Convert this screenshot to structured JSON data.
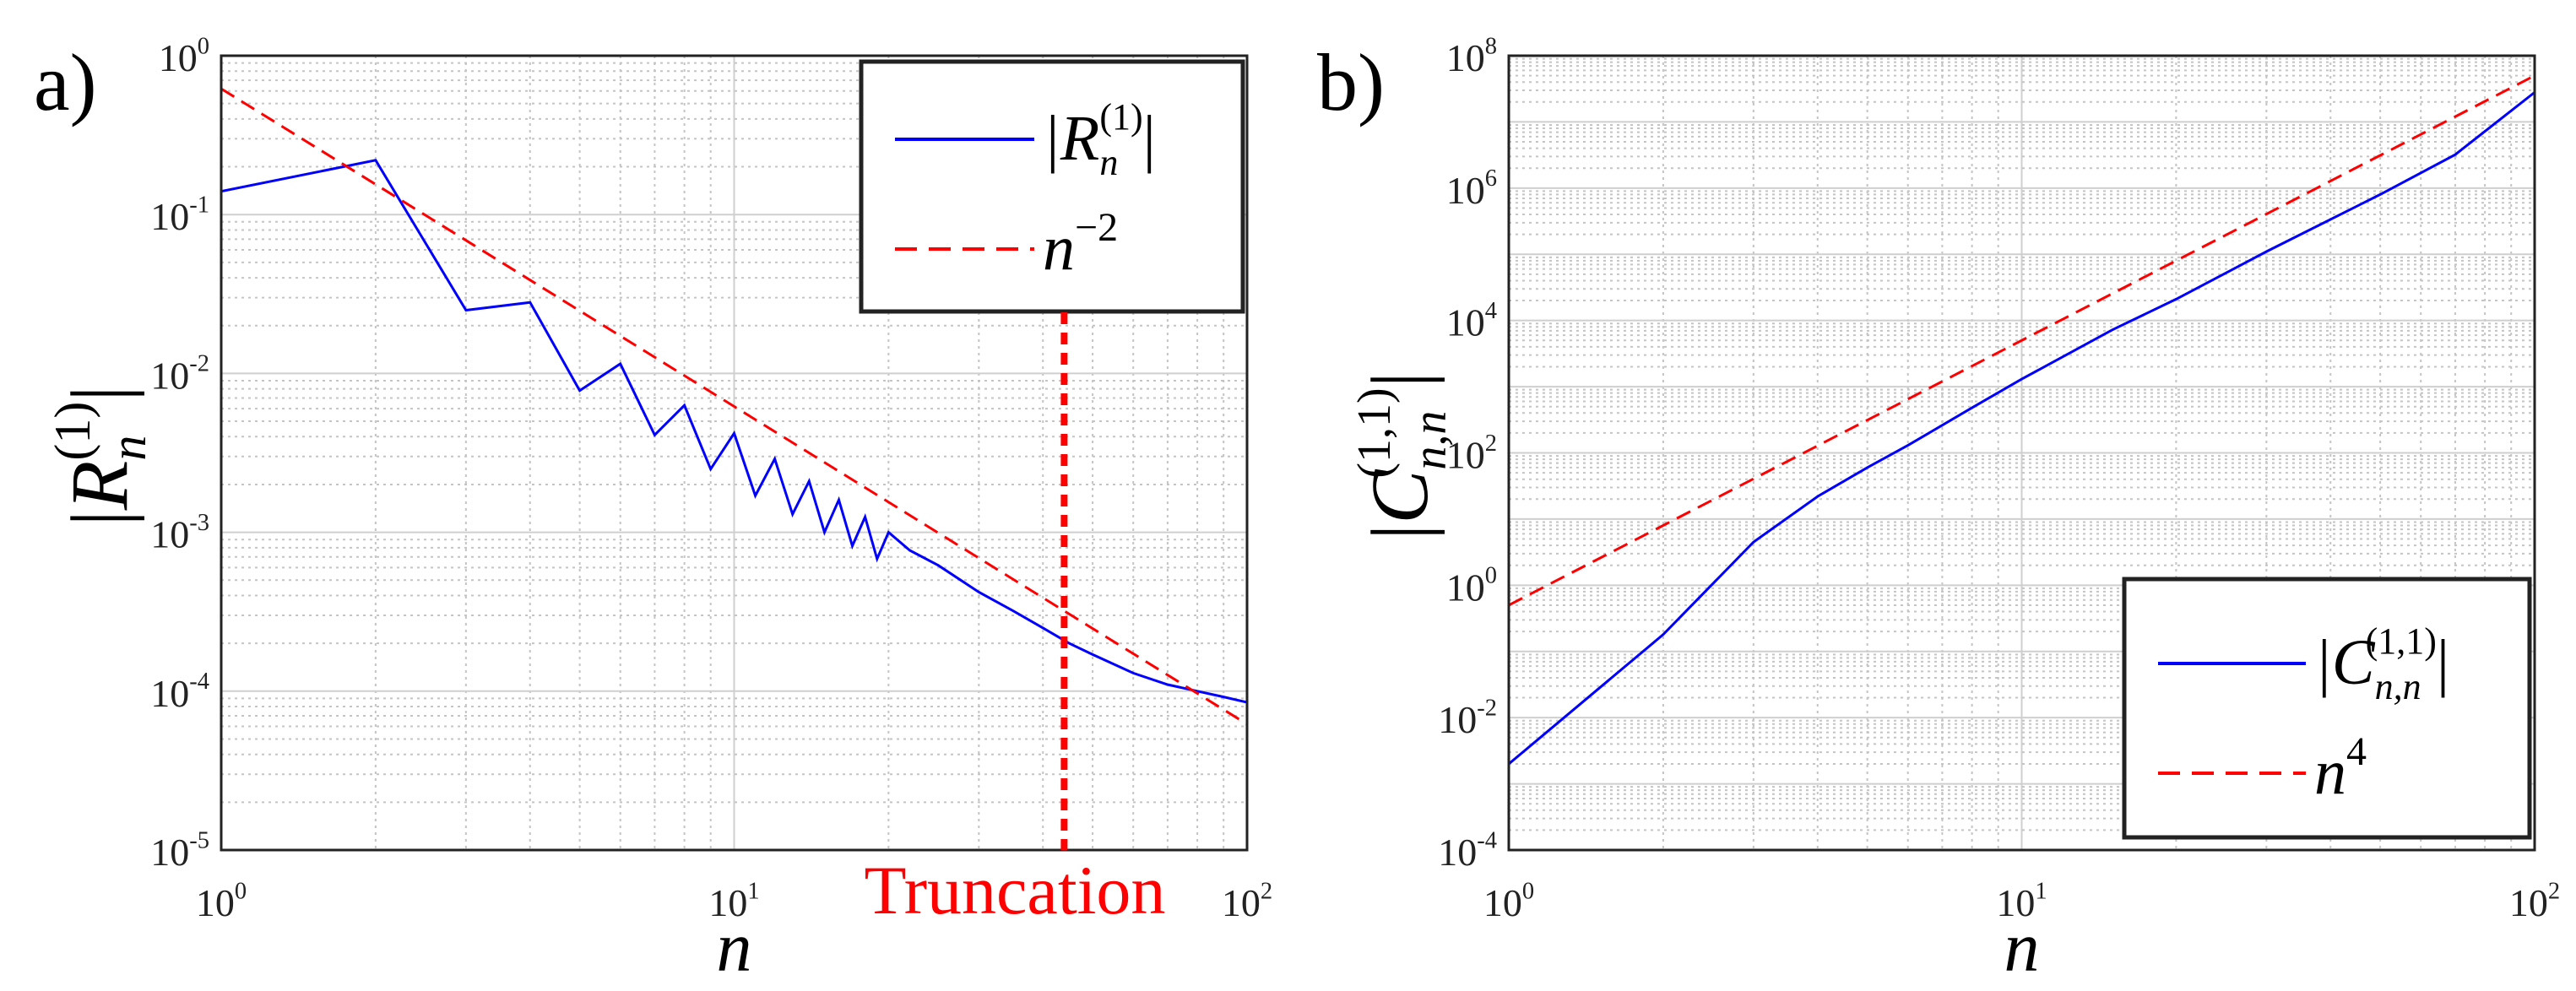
{
  "chart_data": [
    {
      "panel": "a)",
      "type": "line",
      "scale": "loglog",
      "xlabel": "n",
      "ylabel": "|R_n^(1)|",
      "xlim": [
        1,
        100
      ],
      "ylim": [
        1e-05,
        1
      ],
      "x_ticks": [
        1,
        10,
        100
      ],
      "x_tick_labels": [
        {
          "base": "10",
          "exp": "0"
        },
        {
          "base": "10",
          "exp": "1"
        },
        {
          "base": "10",
          "exp": "2"
        }
      ],
      "y_ticks": [
        1e-05,
        0.0001,
        0.001,
        0.01,
        0.1,
        1
      ],
      "y_tick_labels": [
        {
          "base": "10",
          "exp": "-5"
        },
        {
          "base": "10",
          "exp": "-4"
        },
        {
          "base": "10",
          "exp": "-3"
        },
        {
          "base": "10",
          "exp": "-2"
        },
        {
          "base": "10",
          "exp": "-1"
        },
        {
          "base": "10",
          "exp": "0"
        }
      ],
      "grid": "major+minor",
      "legend_position": "top-right",
      "series": [
        {
          "name": "|R_n^(1)|",
          "legend_label": "|R",
          "legend_sub": "n",
          "legend_sup": "(1)",
          "color": "#0000ff",
          "style": "solid",
          "envelope": "alternating odd/even sawtooth decaying ~ n^-2",
          "x": [
            1,
            2,
            3,
            4,
            5,
            6,
            7,
            8,
            9,
            10,
            11,
            12,
            13,
            14,
            15,
            16,
            17,
            18,
            19,
            20,
            22,
            25,
            30,
            35,
            40,
            45,
            50,
            60,
            70,
            80,
            90,
            100
          ],
          "y": [
            0.14,
            0.22,
            0.025,
            0.028,
            0.0078,
            0.0115,
            0.0041,
            0.0063,
            0.0025,
            0.0042,
            0.0017,
            0.0029,
            0.0013,
            0.0021,
            0.001,
            0.0016,
            0.00082,
            0.00125,
            0.00068,
            0.001,
            0.00077,
            0.00062,
            0.00042,
            0.00032,
            0.00025,
            0.0002,
            0.00017,
            0.00013,
            0.00011,
            0.0001,
            9.2e-05,
            8.5e-05
          ]
        },
        {
          "name": "n^-2",
          "legend_label": "n",
          "legend_sup": "−2",
          "color": "#ff0000",
          "style": "dashed",
          "coefficient": 0.62,
          "exponent": -2
        }
      ],
      "annotations": [
        {
          "text": "Truncation",
          "type": "vertical-dashed-line",
          "x": 44,
          "color": "#ff0000"
        }
      ]
    },
    {
      "panel": "b)",
      "type": "line",
      "scale": "loglog",
      "xlabel": "n",
      "ylabel": "|C_n,n^(1,1)|",
      "xlim": [
        1,
        100
      ],
      "ylim": [
        0.0001,
        100000000
      ],
      "x_ticks": [
        1,
        10,
        100
      ],
      "x_tick_labels": [
        {
          "base": "10",
          "exp": "0"
        },
        {
          "base": "10",
          "exp": "1"
        },
        {
          "base": "10",
          "exp": "2"
        }
      ],
      "y_ticks": [
        0.0001,
        0.01,
        1,
        100,
        10000,
        1000000,
        100000000
      ],
      "y_tick_labels": [
        {
          "base": "10",
          "exp": "-4"
        },
        {
          "base": "10",
          "exp": "-2"
        },
        {
          "base": "10",
          "exp": "0"
        },
        {
          "base": "10",
          "exp": "2"
        },
        {
          "base": "10",
          "exp": "4"
        },
        {
          "base": "10",
          "exp": "6"
        },
        {
          "base": "10",
          "exp": "8"
        }
      ],
      "grid": "major+minor",
      "legend_position": "bottom-right",
      "series": [
        {
          "name": "|C_n,n^(1,1)|",
          "legend_label": "|C",
          "legend_sub": "n,n",
          "legend_sup": "(1,1)",
          "color": "#0000ff",
          "style": "solid",
          "x": [
            1,
            2,
            3,
            4,
            5,
            6,
            8,
            10,
            15,
            20,
            30,
            50,
            70,
            100
          ],
          "y": [
            0.002,
            0.18,
            4.5,
            22,
            60,
            130,
            480,
            1300,
            7200,
            21000,
            110000,
            800000,
            3200000,
            28000000
          ]
        },
        {
          "name": "n^4",
          "legend_label": "n",
          "legend_sup": "4",
          "color": "#ff0000",
          "style": "dashed",
          "coefficient": 0.5,
          "exponent": 4
        }
      ]
    }
  ]
}
